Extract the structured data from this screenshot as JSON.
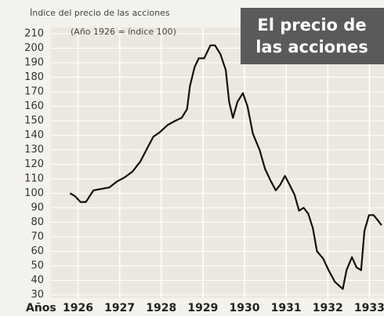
{
  "chart_data": {
    "type": "line",
    "title_lines": [
      "El precio de",
      "las acciones"
    ],
    "y_label": "Índice del precio de las acciones",
    "y_label_note": "(Año 1926 = índice 100)",
    "x_label": "Años",
    "x": [
      1925.81,
      1925.93,
      1926.06,
      1926.19,
      1926.37,
      1926.56,
      1926.75,
      1926.93,
      1927.12,
      1927.31,
      1927.5,
      1927.68,
      1927.81,
      1927.96,
      1928.15,
      1928.34,
      1928.49,
      1928.62,
      1928.69,
      1928.8,
      1928.9,
      1929.03,
      1929.18,
      1929.29,
      1929.42,
      1929.55,
      1929.63,
      1929.72,
      1929.83,
      1929.96,
      1930.07,
      1930.2,
      1930.36,
      1930.49,
      1930.62,
      1930.75,
      1930.86,
      1930.97,
      1931.08,
      1931.2,
      1931.31,
      1931.42,
      1931.53,
      1931.64,
      1931.74,
      1931.89,
      1932.02,
      1932.17,
      1932.36,
      1932.45,
      1932.58,
      1932.69,
      1932.8,
      1932.88,
      1932.99,
      1933.1,
      1933.21,
      1933.29
    ],
    "series": [
      {
        "color": "#111111",
        "values": [
          100,
          98,
          94,
          94,
          102,
          103,
          104,
          108,
          111,
          115,
          122,
          132,
          139,
          142,
          147,
          150,
          152,
          158,
          174,
          187,
          193,
          193,
          202,
          202,
          196,
          185,
          163,
          152,
          163,
          169,
          160,
          141,
          130,
          117,
          109,
          102,
          106,
          112,
          106,
          99,
          88,
          90,
          86,
          76,
          60,
          55,
          47,
          39,
          34,
          47,
          56,
          49,
          47,
          74,
          85,
          85,
          81,
          78
        ]
      }
    ],
    "xlim": [
      1925.35,
      1933.35
    ],
    "xticks": [
      1926,
      1927,
      1928,
      1929,
      1930,
      1931,
      1932,
      1933
    ],
    "ylim": [
      30,
      210
    ],
    "yticks": [
      30,
      40,
      50,
      60,
      70,
      80,
      90,
      100,
      110,
      120,
      130,
      140,
      150,
      160,
      170,
      180,
      190,
      200,
      210
    ],
    "grid": true
  }
}
